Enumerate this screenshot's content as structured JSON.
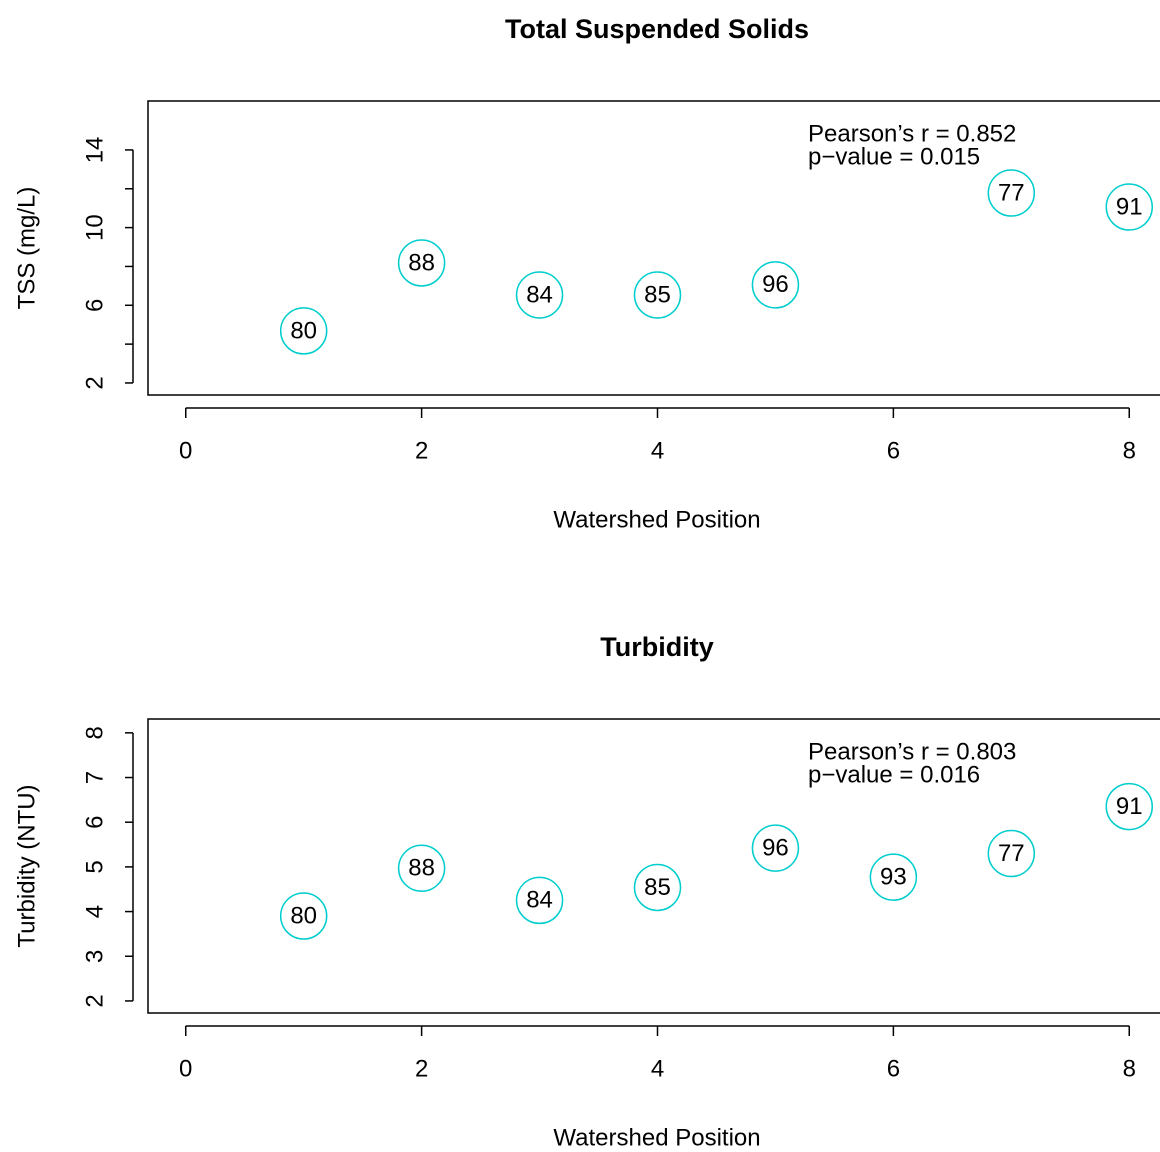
{
  "chart_data": [
    {
      "type": "scatter",
      "title": "Total Suspended Solids",
      "x_label": "Watershed Position",
      "y_label": "TSS (mg/L)",
      "x": [
        1,
        2,
        3,
        4,
        5,
        7,
        8
      ],
      "values": [
        4.68,
        8.18,
        6.53,
        6.53,
        7.05,
        11.78,
        11.06
      ],
      "point_labels": [
        "80",
        "88",
        "84",
        "85",
        "96",
        "77",
        "91"
      ],
      "color": "#00cdcd",
      "xlim": [
        -0.32,
        8.32
      ],
      "xticks": [
        0,
        2,
        4,
        6,
        8
      ],
      "ylim": [
        1.38,
        16.52
      ],
      "yticks": [
        2,
        6,
        10,
        14
      ],
      "yminor_ticks": [
        4,
        8,
        12
      ],
      "annotations": [
        "Pearson’s r = 0.852",
        "p−value = 0.015"
      ]
    },
    {
      "type": "scatter",
      "title": "Turbidity",
      "x_label": "Watershed Position",
      "y_label": "Turbidity (NTU)",
      "x": [
        1,
        2,
        3,
        4,
        5,
        6,
        7,
        8
      ],
      "values": [
        3.9,
        4.97,
        4.25,
        4.54,
        5.42,
        4.77,
        5.3,
        6.35
      ],
      "point_labels": [
        "80",
        "88",
        "84",
        "85",
        "96",
        "93",
        "77",
        "91"
      ],
      "color": "#00cdcd",
      "xlim": [
        -0.32,
        8.32
      ],
      "xticks": [
        0,
        2,
        4,
        6,
        8
      ],
      "ylim": [
        1.73,
        8.31
      ],
      "yticks": [
        2,
        3,
        4,
        5,
        6,
        7,
        8
      ],
      "yminor_ticks": [],
      "annotations": [
        "Pearson’s r = 0.803",
        "p−value = 0.016"
      ]
    }
  ]
}
